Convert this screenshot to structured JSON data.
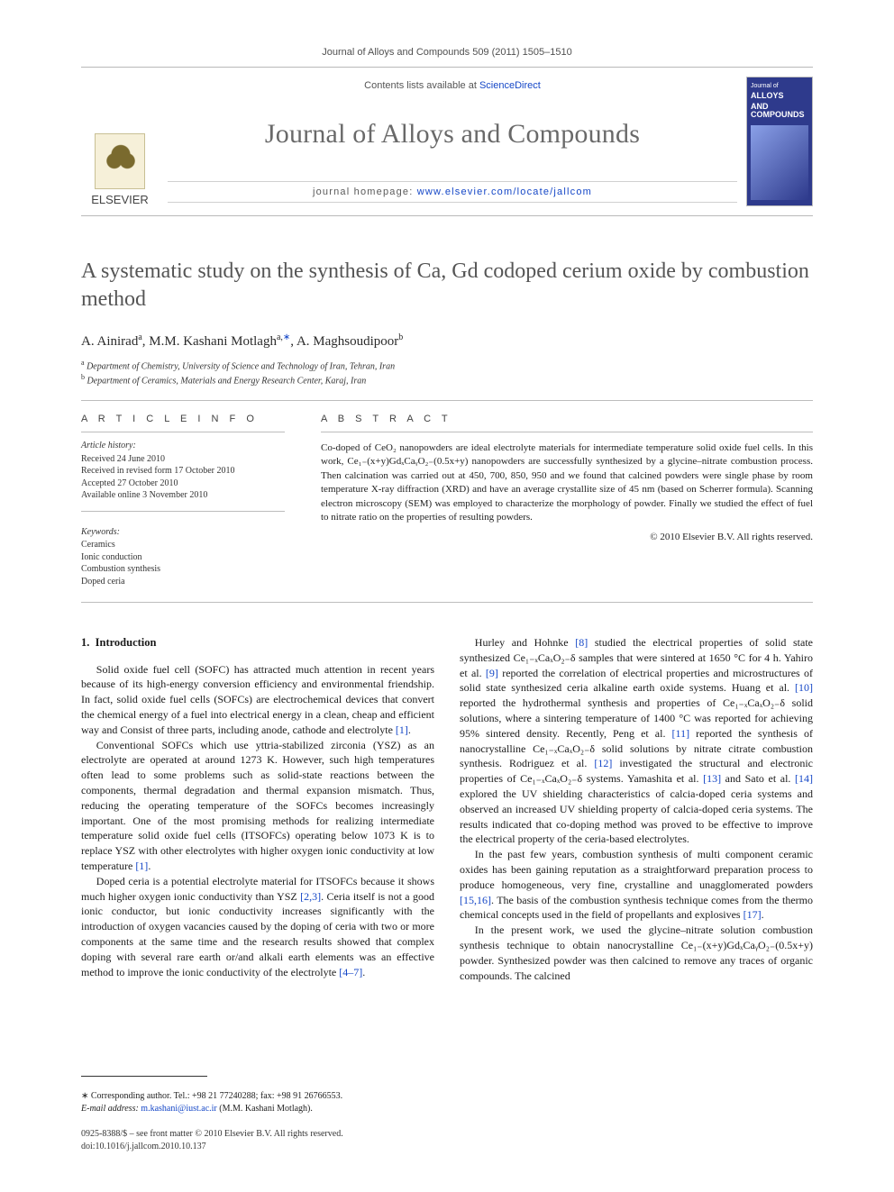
{
  "runhead": "Journal of Alloys and Compounds 509 (2011) 1505–1510",
  "masthead": {
    "publisher": "ELSEVIER",
    "contents_prefix": "Contents lists available at ",
    "contents_link": "ScienceDirect",
    "journal": "Journal of Alloys and Compounds",
    "homepage_label": "journal homepage: ",
    "homepage_url": "www.elsevier.com/locate/jallcom",
    "cover_line1": "Journal of",
    "cover_line2": "ALLOYS",
    "cover_line3": "AND COMPOUNDS"
  },
  "title": "A systematic study on the synthesis of Ca, Gd codoped cerium oxide by combustion method",
  "authors_html": "A. Ainirad<sup>a</sup>, M.M. Kashani Motlagh<sup>a,</sup><sup class='link'>∗</sup>, A. Maghsoudipoor<sup>b</sup>",
  "affiliations": [
    "a Department of Chemistry, University of Science and Technology of Iran, Tehran, Iran",
    "b Department of Ceramics, Materials and Energy Research Center, Karaj, Iran"
  ],
  "info": {
    "heading": "A R T I C L E   I N F O",
    "history_head": "Article history:",
    "history": [
      "Received 24 June 2010",
      "Received in revised form 17 October 2010",
      "Accepted 27 October 2010",
      "Available online 3 November 2010"
    ],
    "keywords_head": "Keywords:",
    "keywords": [
      "Ceramics",
      "Ionic conduction",
      "Combustion synthesis",
      "Doped ceria"
    ]
  },
  "abstract": {
    "heading": "A B S T R A C T",
    "text": "Co-doped of CeO₂ nanopowders are ideal electrolyte materials for intermediate temperature solid oxide fuel cells. In this work, Ce₁₋(x+y)GdₓCaᵧO₂₋(0.5x+y) nanopowders are successfully synthesized by a glycine–nitrate combustion process. Then calcination was carried out at 450, 700, 850, 950 and we found that calcined powders were single phase by room temperature X-ray diffraction (XRD) and have an average crystallite size of 45 nm (based on Scherrer formula). Scanning electron microscopy (SEM) was employed to characterize the morphology of powder. Finally we studied the effect of fuel to nitrate ratio on the properties of resulting powders.",
    "copyright": "© 2010 Elsevier B.V. All rights reserved."
  },
  "body": {
    "section_no": "1.",
    "section_title": "Introduction",
    "p1": "Solid oxide fuel cell (SOFC) has attracted much attention in recent years because of its high-energy conversion efficiency and environmental friendship. In fact, solid oxide fuel cells (SOFCs) are electrochemical devices that convert the chemical energy of a fuel into electrical energy in a clean, cheap and efficient way and Consist of three parts, including anode, cathode and electrolyte ",
    "p1_ref": "[1]",
    "p1_tail": ".",
    "p2": "Conventional SOFCs which use yttria-stabilized zirconia (YSZ) as an electrolyte are operated at around 1273 K. However, such high temperatures often lead to some problems such as solid-state reactions between the components, thermal degradation and thermal expansion mismatch. Thus, reducing the operating temperature of the SOFCs becomes increasingly important. One of the most promising methods for realizing intermediate temperature solid oxide fuel cells (ITSOFCs) operating below 1073 K is to replace YSZ with other electrolytes with higher oxygen ionic conductivity at low temperature ",
    "p2_ref": "[1]",
    "p2_tail": ".",
    "p3a": "Doped ceria is a potential electrolyte material for ITSOFCs because it shows much higher oxygen ionic conductivity than YSZ ",
    "p3_ref1": "[2,3]",
    "p3b": ". Ceria itself is not a good ionic conductor, but ionic conductivity increases significantly with the introduction of oxygen vacancies caused by the doping of ceria with two or more components at the same time and the research results showed that complex doping with several rare earth or/and alkali earth ele",
    "p3c": "ments was an effective method to improve the ionic conductivity of the electrolyte ",
    "p3_ref2": "[4–7]",
    "p3_tail": ".",
    "p4a": "Hurley and Hohnke ",
    "p4_r1": "[8]",
    "p4b": " studied the electrical properties of solid state synthesized Ce₁₋ₓCaₓO₂₋δ samples that were sintered at 1650 °C for 4 h. Yahiro et al. ",
    "p4_r2": "[9]",
    "p4c": " reported the correlation of electrical properties and microstructures of solid state synthesized ceria alkaline earth oxide systems. Huang et al. ",
    "p4_r3": "[10]",
    "p4d": " reported the hydrothermal synthesis and properties of Ce₁₋ₓCaₓO₂₋δ solid solutions, where a sintering temperature of 1400 °C was reported for achieving 95% sintered density. Recently, Peng et al. ",
    "p4_r4": "[11]",
    "p4e": " reported the synthesis of nanocrystalline Ce₁₋ₓCaₓO₂₋δ solid solutions by nitrate citrate combustion synthesis. Rodriguez et al. ",
    "p4_r5": "[12]",
    "p4f": " investigated the structural and electronic properties of Ce₁₋ₓCaₓO₂₋δ systems. Yamashita et al. ",
    "p4_r6": "[13]",
    "p4g": " and Sato et al. ",
    "p4_r7": "[14]",
    "p4h": " explored the UV shielding characteristics of calcia-doped ceria systems and observed an increased UV shielding property of calcia-doped ceria systems. The results indicated that co-doping method was proved to be effective to improve the electrical property of the ceria-based electrolytes.",
    "p5a": "In the past few years, combustion synthesis of multi component ceramic oxides has been gaining reputation as a straightforward preparation process to produce homogeneous, very fine, crystalline and unagglomerated powders ",
    "p5_r1": "[15,16]",
    "p5b": ". The basis of the combustion synthesis technique comes from the thermo chemical concepts used in the field of propellants and explosives ",
    "p5_r2": "[17]",
    "p5_tail": ".",
    "p6": "In the present work, we used the glycine–nitrate solution combustion synthesis technique to obtain nanocrystalline Ce₁₋(x+y)GdₓCaᵧO₂₋(0.5x+y) powder. Synthesized powder was then calcined to remove any traces of organic compounds. The calcined"
  },
  "footnote": {
    "corr_label": "∗ Corresponding author. Tel.: +98 21 77240288; fax: +98 91 26766553.",
    "email_label": "E-mail address: ",
    "email": "m.kashani@iust.ac.ir",
    "email_tail": " (M.M. Kashani Motlagh)."
  },
  "copyblock": {
    "line1": "0925-8388/$ – see front matter © 2010 Elsevier B.V. All rights reserved.",
    "line2": "doi:10.1016/j.jallcom.2010.10.137"
  },
  "colors": {
    "link": "#1547c7",
    "title_gray": "#555555",
    "rule": "#bdbdbd",
    "cover_bg": "#2e3a8c"
  }
}
